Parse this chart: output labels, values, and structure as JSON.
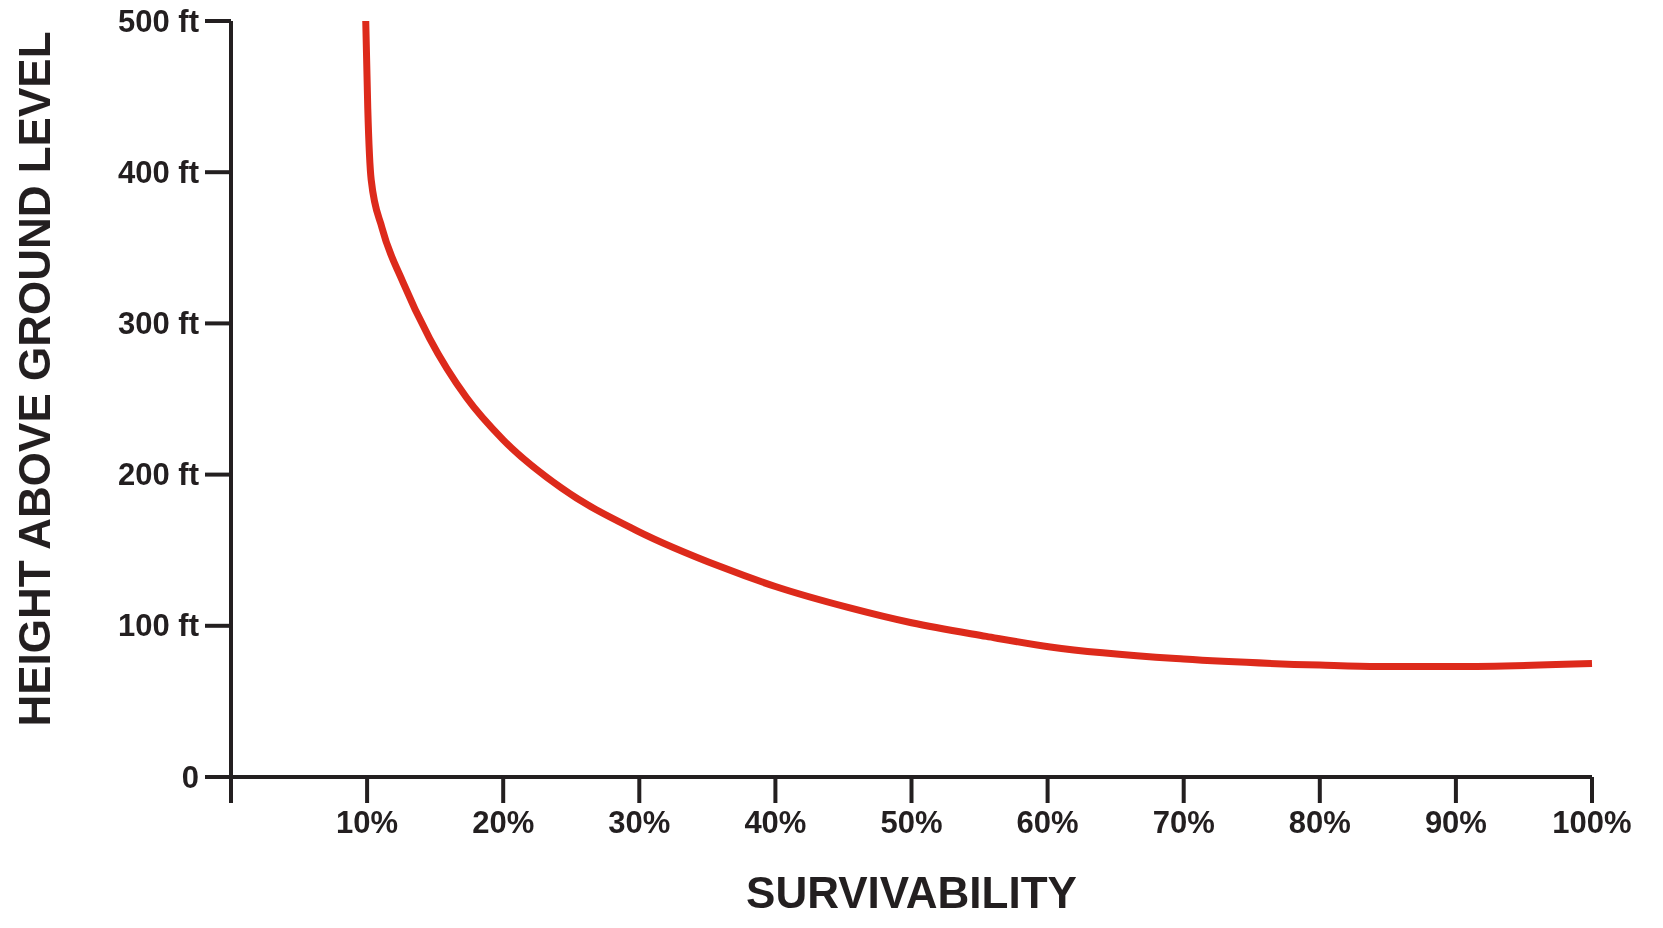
{
  "chart_data": {
    "type": "line",
    "xlabel": "SURVIVABILITY",
    "ylabel": "HEIGHT ABOVE GROUND LEVEL",
    "x": [
      9.9,
      10.05,
      10.3,
      11.1,
      12.6,
      14.6,
      17.3,
      20,
      24.3,
      29.8,
      36,
      40,
      45.4,
      50,
      55.5,
      60.2,
      70,
      80,
      84.3,
      89.8,
      100
    ],
    "series": [
      {
        "color": "#dd2a1b",
        "values": [
          500,
          442,
          395,
          363,
          328,
          290,
          251,
          223,
          191,
          163,
          139,
          126,
          112,
          102,
          93,
          86,
          78,
          74,
          73,
          73,
          75
        ]
      }
    ],
    "xlim": [
      0,
      100
    ],
    "ylim": [
      0,
      500
    ],
    "xticks": [
      {
        "value": 0,
        "label": null
      },
      {
        "value": 10,
        "label": "10%"
      },
      {
        "value": 20,
        "label": "20%"
      },
      {
        "value": 30,
        "label": "30%"
      },
      {
        "value": 40,
        "label": "40%"
      },
      {
        "value": 50,
        "label": "50%"
      },
      {
        "value": 60,
        "label": "60%"
      },
      {
        "value": 70,
        "label": "70%"
      },
      {
        "value": 80,
        "label": "80%"
      },
      {
        "value": 90,
        "label": "90%"
      },
      {
        "value": 100,
        "label": "100%"
      }
    ],
    "yticks": [
      0,
      {
        "value": 100,
        "label": "100 ft"
      },
      {
        "value": 200,
        "label": "200 ft"
      },
      {
        "value": 300,
        "label": "300 ft"
      },
      {
        "value": 400,
        "label": "400 ft"
      },
      {
        "value": 500,
        "label": "500 ft"
      }
    ],
    "grid": false,
    "marker": "none",
    "line_style": "solid"
  }
}
